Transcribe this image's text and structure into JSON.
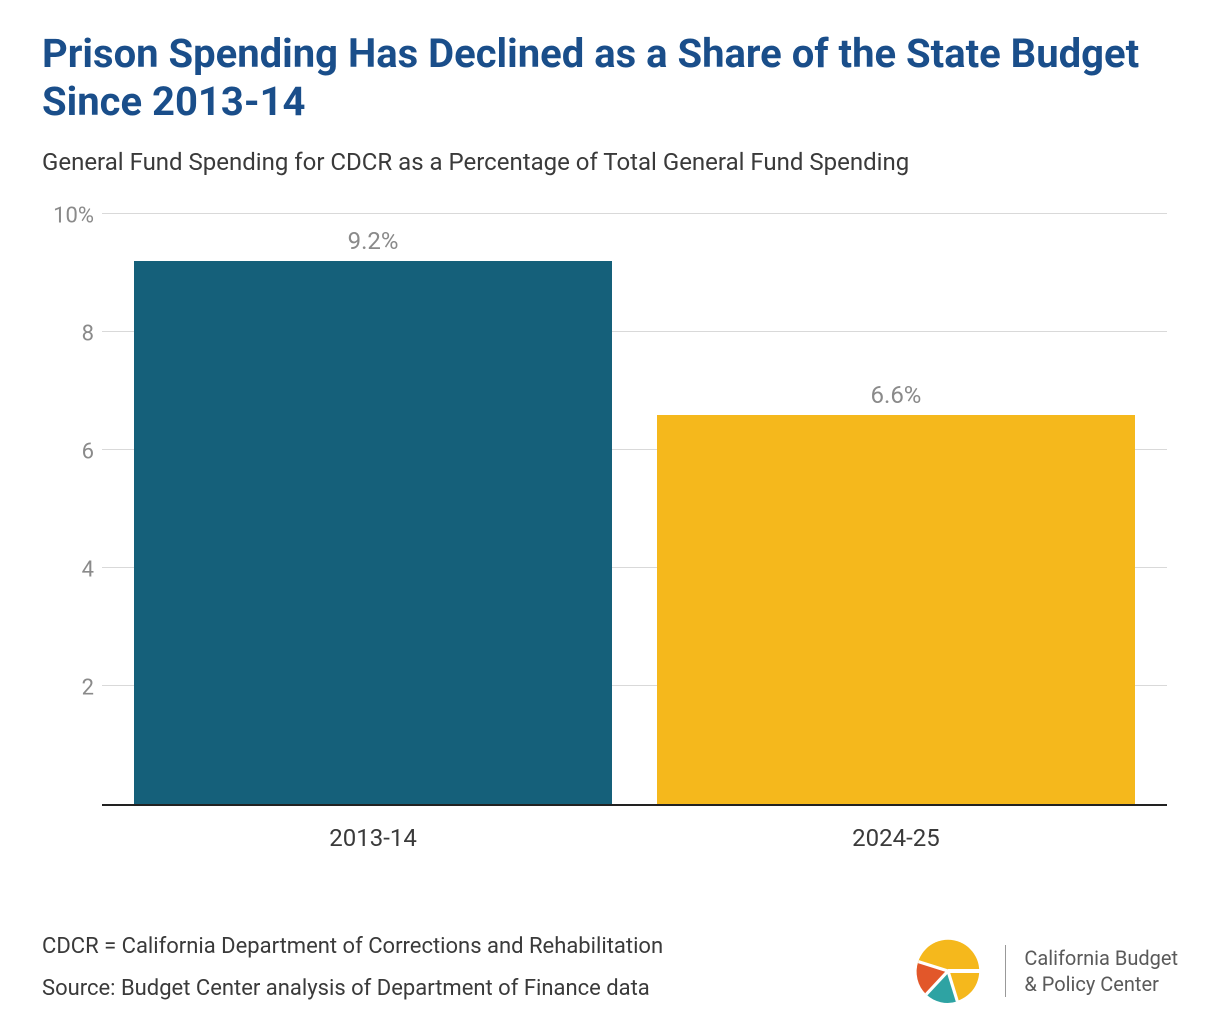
{
  "title": "Prison Spending Has Declined as a Share of the State Budget Since 2013-14",
  "subtitle": "General Fund Spending for CDCR as a Percentage of Total General Fund Spending",
  "chart": {
    "type": "bar",
    "ylim": [
      0,
      10
    ],
    "yticks": [
      {
        "value": 2,
        "label": "2"
      },
      {
        "value": 4,
        "label": "4"
      },
      {
        "value": 6,
        "label": "6"
      },
      {
        "value": 8,
        "label": "8"
      },
      {
        "value": 10,
        "label": "10%"
      }
    ],
    "grid_color": "#d9d9d9",
    "axis_color": "#222222",
    "background_color": "#ffffff",
    "tick_fontsize": 22,
    "tick_color": "#8a8a8a",
    "xlabel_fontsize": 24,
    "xlabel_color": "#3a3a3a",
    "value_label_fontsize": 24,
    "value_label_color": "#8a8a8a",
    "bars": [
      {
        "category": "2013-14",
        "value": 9.2,
        "value_label": "9.2%",
        "color": "#15607a",
        "left_pct": 3.0,
        "width_pct": 44.9
      },
      {
        "category": "2024-25",
        "value": 6.6,
        "value_label": "6.6%",
        "color": "#f5b81c",
        "left_pct": 52.1,
        "width_pct": 44.9
      }
    ]
  },
  "footnote1": "CDCR = California Department of Corrections and Rehabilitation",
  "footnote2": "Source: Budget Center analysis of Department of Finance data",
  "logo": {
    "line1": "California Budget",
    "line2": "& Policy Center",
    "colors": {
      "yellow": "#f5b81c",
      "orange": "#e2572a",
      "teal": "#2ea3a3"
    }
  }
}
